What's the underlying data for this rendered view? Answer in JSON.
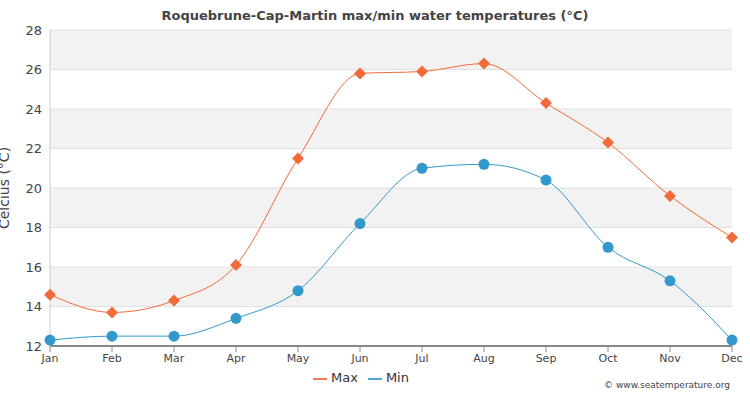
{
  "chart_data": {
    "type": "line",
    "title": "Roquebrune-Cap-Martin max/min water temperatures (°C)",
    "ylabel": "Celcius (°C)",
    "annotations": [
      "© www.seatemperature.org"
    ],
    "categories": [
      "Jan",
      "Feb",
      "Mar",
      "Apr",
      "May",
      "Jun",
      "Jul",
      "Aug",
      "Sep",
      "Oct",
      "Nov",
      "Dec"
    ],
    "series": [
      {
        "name": "Max",
        "color": "#f26a3a",
        "marker": "diamond",
        "values": [
          14.6,
          13.7,
          14.3,
          16.1,
          21.5,
          25.8,
          25.9,
          26.3,
          24.3,
          22.3,
          19.6,
          17.5
        ]
      },
      {
        "name": "Min",
        "color": "#3399cc",
        "marker": "circle",
        "values": [
          12.3,
          12.5,
          12.5,
          13.4,
          14.8,
          18.2,
          21.0,
          21.2,
          20.4,
          17.0,
          15.3,
          12.3
        ]
      }
    ],
    "ylim": [
      12,
      28
    ],
    "yticks": [
      12,
      14,
      16,
      18,
      20,
      22,
      24,
      26,
      28
    ],
    "grid": true,
    "legend": "bottom"
  }
}
